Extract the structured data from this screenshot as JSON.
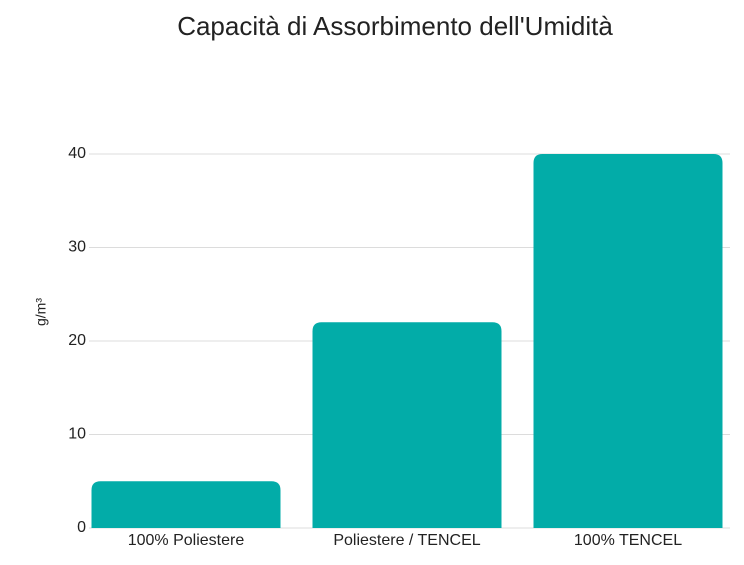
{
  "chart_data": {
    "type": "bar",
    "title": "Capacità di Assorbimento dell'Umidità",
    "ylabel": "g/m³",
    "categories": [
      "100% Poliestere",
      "Poliestere / TENCEL",
      "100% TENCEL"
    ],
    "values": [
      5,
      22,
      40
    ],
    "color": "#02aca8",
    "ylim": [
      0,
      40
    ],
    "yticks": [
      0,
      10,
      20,
      30,
      40
    ],
    "grid": true
  }
}
